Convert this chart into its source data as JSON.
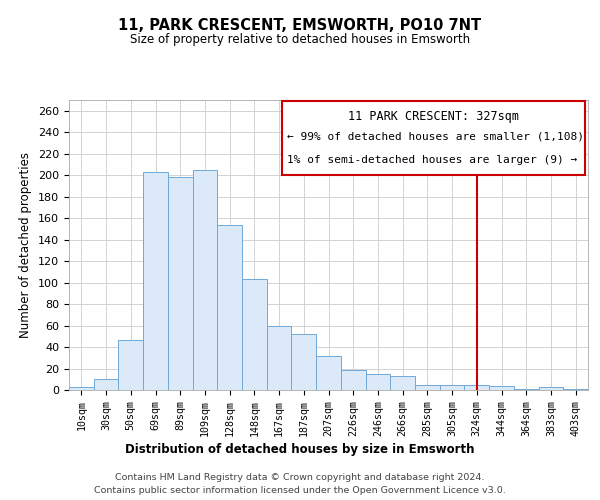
{
  "title": "11, PARK CRESCENT, EMSWORTH, PO10 7NT",
  "subtitle": "Size of property relative to detached houses in Emsworth",
  "xlabel": "Distribution of detached houses by size in Emsworth",
  "ylabel": "Number of detached properties",
  "bar_labels": [
    "10sqm",
    "30sqm",
    "50sqm",
    "69sqm",
    "89sqm",
    "109sqm",
    "128sqm",
    "148sqm",
    "167sqm",
    "187sqm",
    "207sqm",
    "226sqm",
    "246sqm",
    "266sqm",
    "285sqm",
    "305sqm",
    "324sqm",
    "344sqm",
    "364sqm",
    "383sqm",
    "403sqm"
  ],
  "bar_values": [
    3,
    10,
    47,
    203,
    198,
    205,
    154,
    103,
    60,
    52,
    32,
    19,
    15,
    13,
    5,
    5,
    5,
    4,
    1,
    3,
    1
  ],
  "bar_color": "#dce9f8",
  "bar_edge_color": "#6fa8d8",
  "vline_x": 16,
  "vline_color": "#cc0000",
  "annotation_title": "11 PARK CRESCENT: 327sqm",
  "annotation_line1": "← 99% of detached houses are smaller (1,108)",
  "annotation_line2": "1% of semi-detached houses are larger (9) →",
  "annotation_box_color": "#cc0000",
  "ylim": [
    0,
    270
  ],
  "yticks": [
    0,
    20,
    40,
    60,
    80,
    100,
    120,
    140,
    160,
    180,
    200,
    220,
    240,
    260
  ],
  "footer1": "Contains HM Land Registry data © Crown copyright and database right 2024.",
  "footer2": "Contains public sector information licensed under the Open Government Licence v3.0.",
  "bg_color": "#ffffff",
  "grid_color": "#cccccc"
}
